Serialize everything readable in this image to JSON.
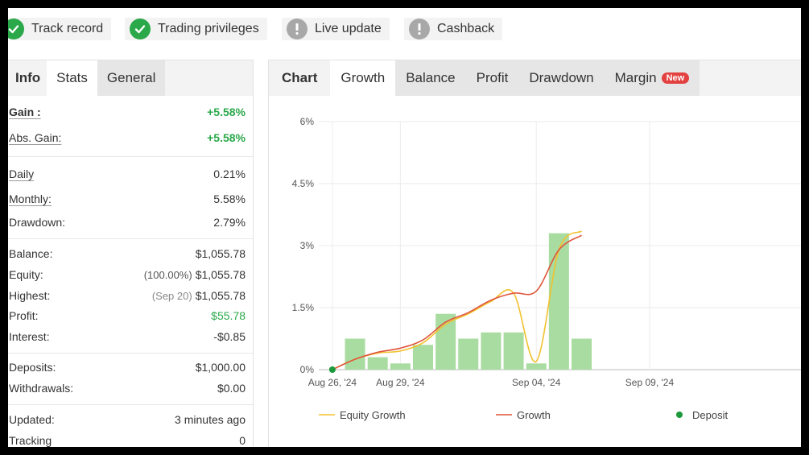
{
  "badges": [
    {
      "label": "Track record",
      "status": "ok",
      "icon": "check-icon"
    },
    {
      "label": "Trading privileges",
      "status": "ok",
      "icon": "check-icon"
    },
    {
      "label": "Live update",
      "status": "warn",
      "icon": "exclamation-icon"
    },
    {
      "label": "Cashback",
      "status": "warn",
      "icon": "exclamation-icon"
    }
  ],
  "left_tabs": {
    "title": "Info",
    "tabs": [
      "Stats",
      "General"
    ],
    "active": "Stats"
  },
  "stats": {
    "gain": {
      "label": "Gain :",
      "value": "+5.58%"
    },
    "abs_gain": {
      "label": "Abs. Gain:",
      "value": "+5.58%"
    },
    "daily": {
      "label": "Daily",
      "value": "0.21%"
    },
    "monthly": {
      "label": "Monthly:",
      "value": "5.58%"
    },
    "drawdown": {
      "label": "Drawdown:",
      "value": "2.79%"
    },
    "balance": {
      "label": "Balance:",
      "value": "$1,055.78"
    },
    "equity": {
      "label": "Equity:",
      "note": "(100.00%)",
      "value": "$1,055.78"
    },
    "highest": {
      "label": "Highest:",
      "note": "(Sep 20)",
      "value": "$1,055.78"
    },
    "profit": {
      "label": "Profit:",
      "value": "$55.78"
    },
    "interest": {
      "label": "Interest:",
      "value": "-$0.85"
    },
    "deposits": {
      "label": "Deposits:",
      "value": "$1,000.00"
    },
    "withdrawals": {
      "label": "Withdrawals:",
      "value": "$0.00"
    },
    "updated": {
      "label": "Updated:",
      "value": "3 minutes ago"
    },
    "tracking": {
      "label": "Tracking",
      "value": "0"
    }
  },
  "right_tabs": {
    "title": "Chart",
    "tabs": [
      "Growth",
      "Balance",
      "Profit",
      "Drawdown",
      "Margin"
    ],
    "active": "Growth",
    "new_badge": "New"
  },
  "colors": {
    "green": "#2aa84a",
    "equity_line": "#f2c12e",
    "growth_line": "#e0553c",
    "bar": "#a9dca0",
    "deposit": "#1a9a3a"
  },
  "chart_data": {
    "type": "line",
    "y_ticks": [
      "6%",
      "4.5%",
      "3%",
      "1.5%",
      "0%"
    ],
    "ylim": [
      0,
      6
    ],
    "x_ticks": [
      "Aug 26, '24",
      "Aug 29, '24",
      "Sep 04, '24",
      "Sep 09, '24"
    ],
    "x_tick_days": [
      0,
      3,
      9,
      14
    ],
    "xlim_days": [
      -0.6,
      21
    ],
    "bars": [
      {
        "day": 1,
        "value": 0.75
      },
      {
        "day": 2,
        "value": 0.3
      },
      {
        "day": 3,
        "value": 0.15
      },
      {
        "day": 4,
        "value": 0.6
      },
      {
        "day": 5,
        "value": 1.35
      },
      {
        "day": 6,
        "value": 0.75
      },
      {
        "day": 7,
        "value": 0.9
      },
      {
        "day": 8,
        "value": 0.9
      },
      {
        "day": 9,
        "value": 0.15
      },
      {
        "day": 10,
        "value": 3.3
      },
      {
        "day": 11,
        "value": 0.75
      }
    ],
    "series": [
      {
        "name": "Equity Growth",
        "points": [
          [
            0,
            0
          ],
          [
            1,
            0.25
          ],
          [
            2,
            0.4
          ],
          [
            3,
            0.45
          ],
          [
            4,
            0.65
          ],
          [
            5,
            1.1
          ],
          [
            6,
            1.35
          ],
          [
            7,
            1.65
          ],
          [
            8,
            1.85
          ],
          [
            9,
            0.2
          ],
          [
            10,
            2.9
          ],
          [
            11,
            3.35
          ]
        ]
      },
      {
        "name": "Growth",
        "points": [
          [
            0,
            0
          ],
          [
            1,
            0.25
          ],
          [
            2,
            0.42
          ],
          [
            3,
            0.52
          ],
          [
            4,
            0.72
          ],
          [
            5,
            1.15
          ],
          [
            6,
            1.38
          ],
          [
            7,
            1.68
          ],
          [
            8,
            1.85
          ],
          [
            9,
            1.9
          ],
          [
            10,
            2.9
          ],
          [
            11,
            3.25
          ]
        ]
      }
    ],
    "deposit": {
      "name": "Deposit",
      "day": 0,
      "value": 0
    },
    "legend": [
      "Equity Growth",
      "Growth",
      "Deposit"
    ],
    "grid": true
  }
}
